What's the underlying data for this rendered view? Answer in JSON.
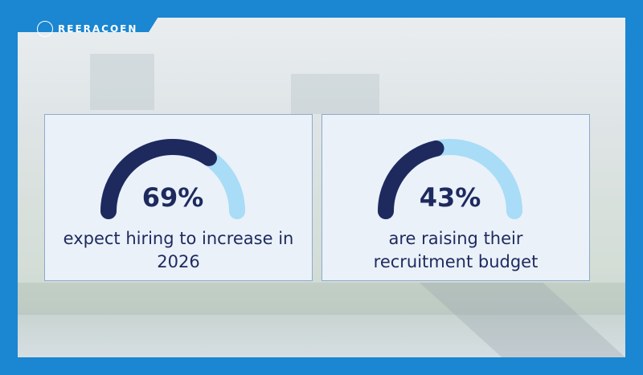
{
  "logo": "REERACOEN",
  "chart_data": [
    {
      "type": "gauge",
      "values": [
        69
      ],
      "value_labels": [
        "69%"
      ],
      "caption": "expect hiring to increase in 2026",
      "ylim": [
        0,
        100
      ],
      "color": "#1e2a5e",
      "track_color": "#a9dcf6"
    },
    {
      "type": "gauge",
      "values": [
        43
      ],
      "value_labels": [
        "43%"
      ],
      "caption": "are raising their recruitment budget",
      "ylim": [
        0,
        100
      ],
      "color": "#1e2a5e",
      "track_color": "#a9dcf6"
    }
  ]
}
